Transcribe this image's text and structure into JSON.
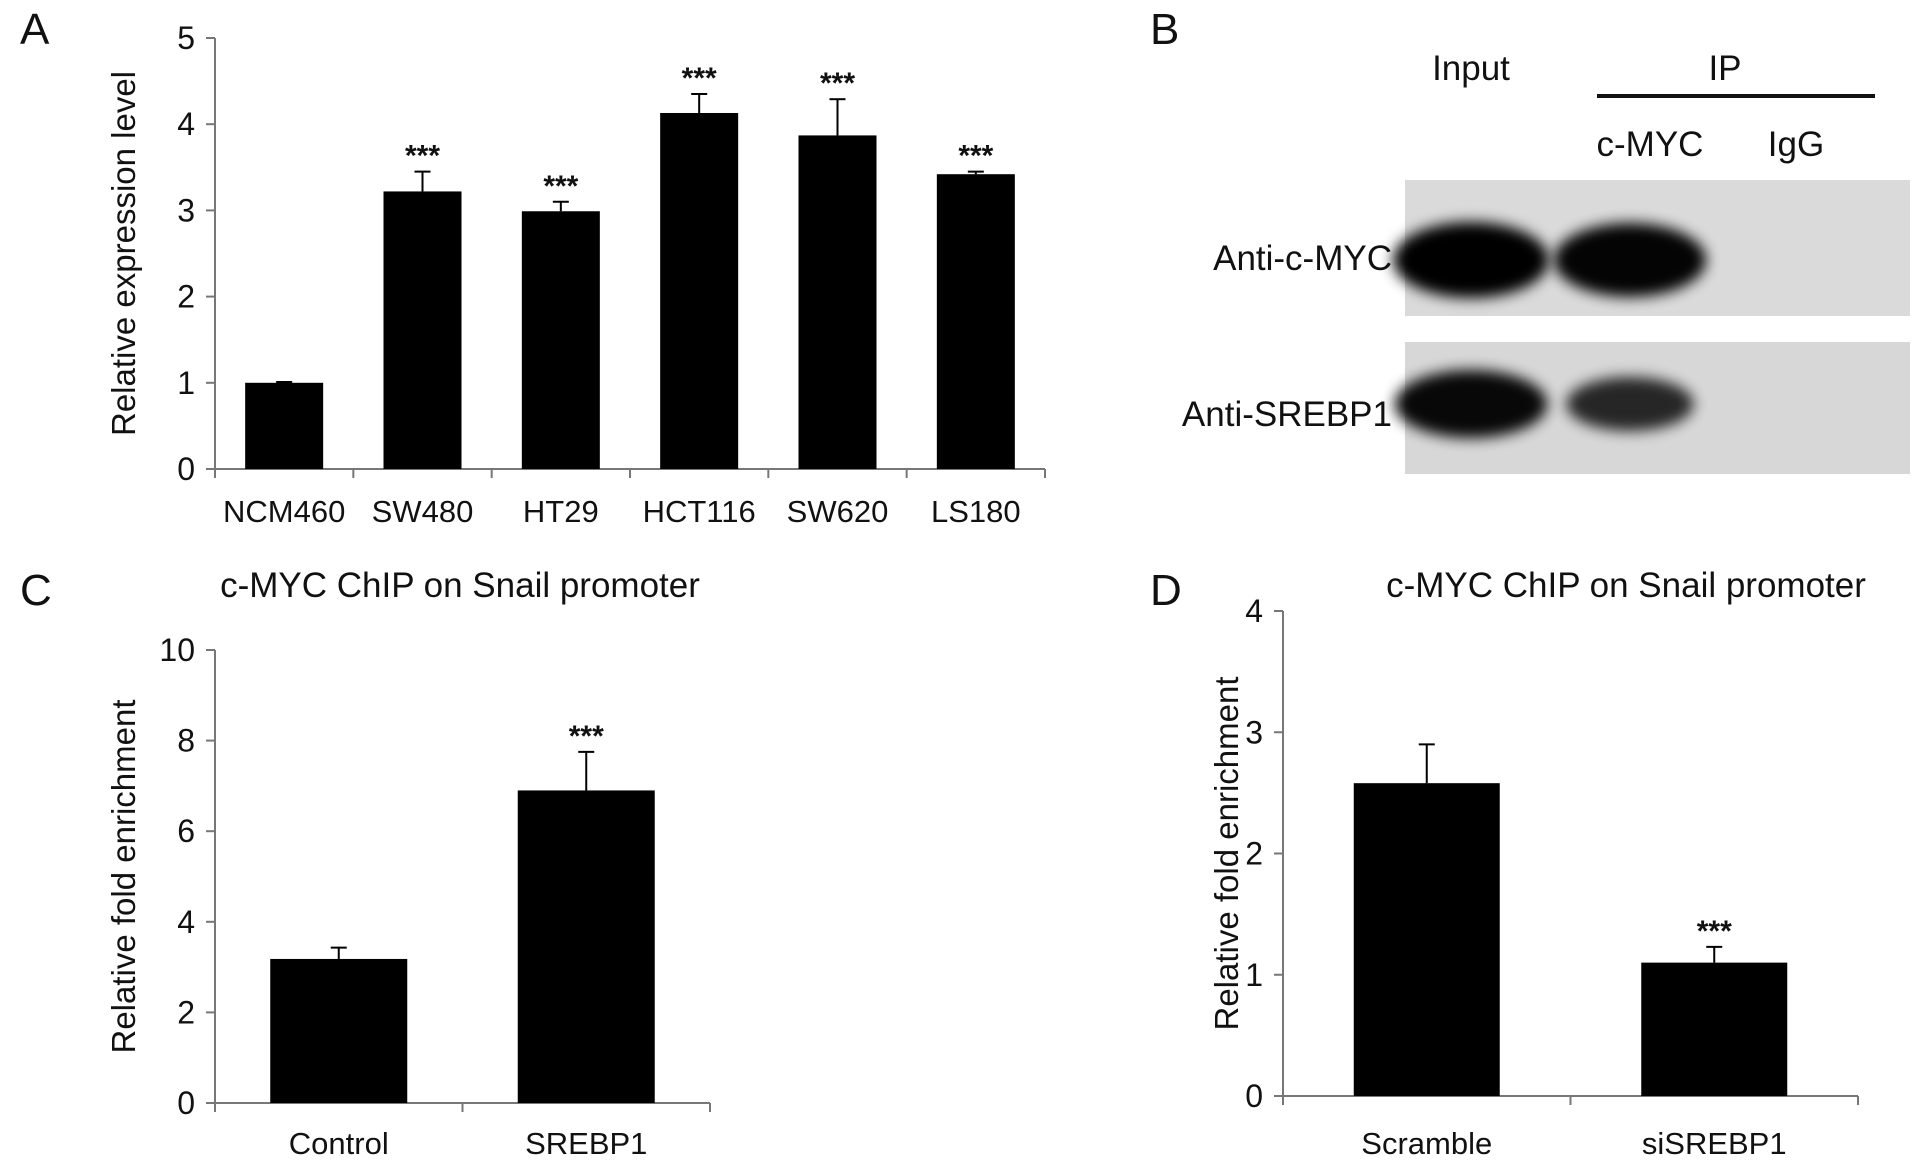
{
  "panels": {
    "A": "A",
    "B": "B",
    "C": "C",
    "D": "D"
  },
  "chart_data": [
    {
      "panel": "A",
      "type": "bar",
      "title": "",
      "xlabel": "",
      "ylabel": "Relative expression level",
      "ylim": [
        0,
        5
      ],
      "yticks": [
        "0",
        "1",
        "2",
        "3",
        "4",
        "5"
      ],
      "categories": [
        "NCM460",
        "SW480",
        "HT29",
        "HCT116",
        "SW620",
        "LS180"
      ],
      "values": [
        1.0,
        3.22,
        2.99,
        4.13,
        3.87,
        3.42
      ],
      "errors": [
        0.01,
        0.23,
        0.11,
        0.22,
        0.42,
        0.03
      ],
      "annotations": [
        "",
        "***",
        "***",
        "***",
        "***",
        "***"
      ],
      "grid": false,
      "bar_color": "#000000"
    },
    {
      "panel": "C",
      "type": "bar",
      "title": "c-MYC ChIP on Snail promoter",
      "xlabel": "",
      "ylabel": "Relative fold enrichment",
      "ylim": [
        0,
        10
      ],
      "yticks": [
        "0",
        "2",
        "4",
        "6",
        "8",
        "10"
      ],
      "categories": [
        "Control",
        "SREBP1"
      ],
      "values": [
        3.18,
        6.9
      ],
      "errors": [
        0.25,
        0.85
      ],
      "annotations": [
        "",
        "***"
      ],
      "grid": false,
      "bar_color": "#000000"
    },
    {
      "panel": "D",
      "type": "bar",
      "title": "c-MYC ChIP on Snail promoter",
      "xlabel": "",
      "ylabel": "Relative fold enrichment",
      "ylim": [
        0,
        4
      ],
      "yticks": [
        "0",
        "1",
        "2",
        "3",
        "4"
      ],
      "categories": [
        "Scramble",
        "siSREBP1"
      ],
      "values": [
        2.58,
        1.1
      ],
      "errors": [
        0.32,
        0.13
      ],
      "annotations": [
        "",
        "***"
      ],
      "grid": false,
      "bar_color": "#000000"
    }
  ],
  "blot": {
    "panel": "B",
    "header_input": "Input",
    "header_ip": "IP",
    "lane_labels": [
      "c-MYC",
      "IgG"
    ],
    "rows": [
      {
        "label": "Anti-c-MYC",
        "band_intensity": [
          1.0,
          0.95,
          0.0
        ]
      },
      {
        "label": "Anti-SREBP1",
        "band_intensity": [
          0.9,
          0.55,
          0.0
        ]
      }
    ]
  }
}
